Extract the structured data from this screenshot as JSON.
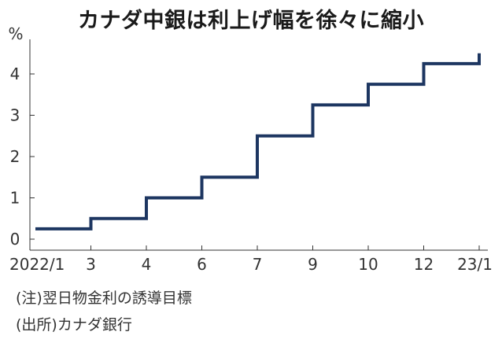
{
  "title": "カナダ中銀は利上げ幅を徐々に縮小",
  "notes": {
    "note1": "(注)翌日物金利の誘導目標",
    "source": "(出所)カナダ銀行"
  },
  "chart_data": {
    "type": "line",
    "step": "post",
    "ylabel": "%",
    "ylim": [
      0,
      4.6
    ],
    "grid": false,
    "color": "#1d3661",
    "y_ticks": [
      "0",
      "1",
      "2",
      "3",
      "4"
    ],
    "x_ticks": [
      "2022/1",
      "3",
      "4",
      "6",
      "7",
      "9",
      "10",
      "12",
      "23/1"
    ],
    "series": [
      {
        "x": [
          "2022/1",
          "3",
          "4",
          "6",
          "7",
          "9",
          "10",
          "12",
          "23/1"
        ],
        "values": [
          0.25,
          0.5,
          1.0,
          1.5,
          2.5,
          3.25,
          3.75,
          4.25,
          4.5
        ]
      }
    ]
  }
}
